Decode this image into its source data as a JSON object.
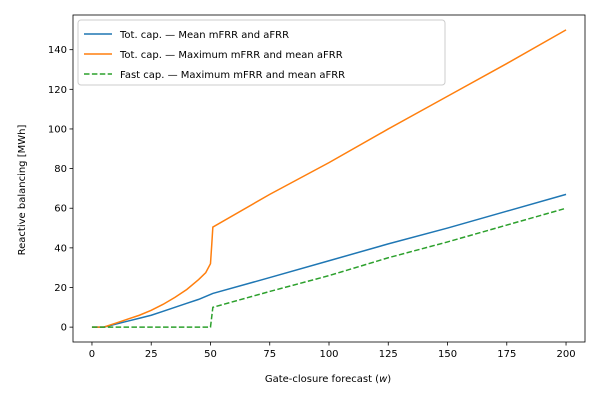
{
  "chart_data": {
    "type": "line",
    "title": "",
    "xlabel_main": "Gate-closure forecast (",
    "xlabel_var": "w",
    "xlabel_end": ")",
    "ylabel": "Reactive balancing [MWh]",
    "xlim": [
      -8,
      208
    ],
    "ylim": [
      -7.5,
      157.5
    ],
    "xticks": [
      0,
      25,
      50,
      75,
      100,
      125,
      150,
      175,
      200
    ],
    "yticks": [
      0,
      20,
      40,
      60,
      80,
      100,
      120,
      140
    ],
    "grid": false,
    "legend_position": "top-left",
    "series": [
      {
        "name": "Tot. cap. — Mean mFRR and aFRR",
        "color": "#1f77b4",
        "dash": "solid",
        "x": [
          0,
          5,
          10,
          15,
          20,
          25,
          30,
          35,
          40,
          45,
          50,
          51,
          75,
          100,
          125,
          150,
          175,
          200
        ],
        "y": [
          0,
          0,
          1.5,
          3,
          4.5,
          6,
          8,
          10,
          12,
          14,
          16.5,
          17,
          25,
          33.5,
          42,
          50,
          58.5,
          67
        ]
      },
      {
        "name": "Tot. cap. — Maximum mFRR and mean aFRR",
        "color": "#ff7f0e",
        "dash": "solid",
        "x": [
          0,
          5,
          10,
          15,
          20,
          25,
          30,
          35,
          40,
          45,
          48,
          50,
          50.5,
          51,
          75,
          100,
          125,
          150,
          175,
          200
        ],
        "y": [
          0,
          0,
          2,
          4,
          6,
          8.5,
          11.5,
          15,
          19,
          24,
          27.5,
          32,
          41,
          50.5,
          67,
          83,
          100,
          116.5,
          133,
          150
        ]
      },
      {
        "name": "Fast cap. — Maximum mFRR and mean aFRR",
        "color": "#2ca02c",
        "dash": "dashed",
        "x": [
          0,
          25,
          50,
          50.5,
          51,
          75,
          100,
          125,
          150,
          175,
          200
        ],
        "y": [
          0,
          0,
          0,
          5,
          10,
          18,
          26,
          35,
          43,
          51.5,
          60
        ]
      }
    ]
  }
}
